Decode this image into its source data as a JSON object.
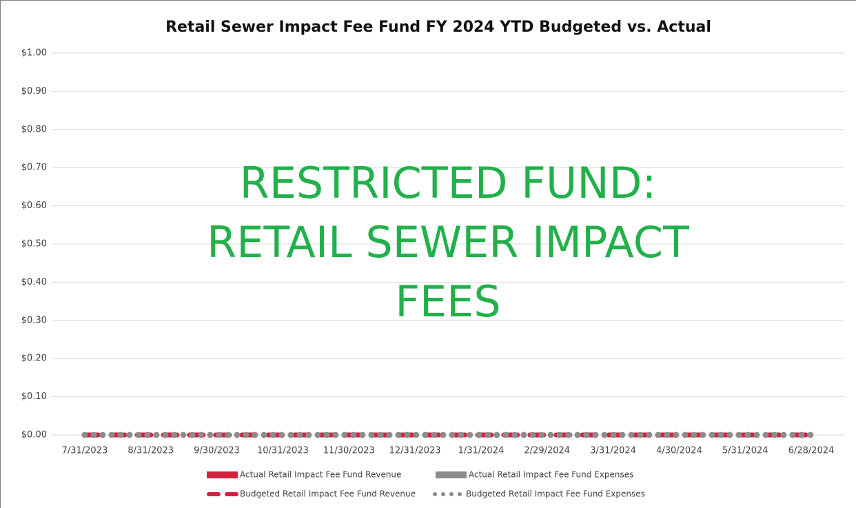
{
  "chart_data": {
    "type": "bar_line",
    "title": "Retail Sewer Impact Fee Fund FY 2024 YTD Budgeted vs. Actual",
    "annotation": [
      "RESTRICTED FUND:",
      "RETAIL SEWER IMPACT",
      "FEES"
    ],
    "annotation_color": "#22b04b",
    "categories": [
      "7/31/2023",
      "8/31/2023",
      "9/30/2023",
      "10/31/2023",
      "11/30/2023",
      "12/31/2023",
      "1/31/2024",
      "2/29/2024",
      "3/31/2024",
      "4/30/2024",
      "5/31/2024",
      "6/28/2024"
    ],
    "series": [
      {
        "name": "Actual Retail Impact Fee Fund Revenue",
        "kind": "bar",
        "color": "#d4213d",
        "values": [
          0,
          0,
          0,
          0,
          0,
          0,
          0,
          0,
          0,
          0,
          0,
          0
        ]
      },
      {
        "name": "Actual Retail Impact Fee Fund Expenses",
        "kind": "bar",
        "color": "#8c8c8c",
        "values": [
          0,
          0,
          0,
          0,
          0,
          0,
          0,
          0,
          0,
          0,
          0,
          0
        ]
      },
      {
        "name": "Budgeted Retail Impact Fee Fund Revenue",
        "kind": "line",
        "style": "dashed",
        "color": "#d4213d",
        "values": [
          0,
          0,
          0,
          0,
          0,
          0,
          0,
          0,
          0,
          0,
          0,
          0
        ]
      },
      {
        "name": "Budgeted Retail Impact Fee Fund Expenses",
        "kind": "line",
        "style": "dotted",
        "color": "#8c8c8c",
        "values": [
          0,
          0,
          0,
          0,
          0,
          0,
          0,
          0,
          0,
          0,
          0,
          0
        ]
      }
    ],
    "ylim": [
      0,
      1
    ],
    "yticks": [
      {
        "value": 0,
        "label": "$0.00"
      },
      {
        "value": 0.1,
        "label": "$0.10"
      },
      {
        "value": 0.2,
        "label": "$0.20"
      },
      {
        "value": 0.3,
        "label": "$0.30"
      },
      {
        "value": 0.4,
        "label": "$0.40"
      },
      {
        "value": 0.5,
        "label": "$0.50"
      },
      {
        "value": 0.6,
        "label": "$0.60"
      },
      {
        "value": 0.7,
        "label": "$0.70"
      },
      {
        "value": 0.8,
        "label": "$0.80"
      },
      {
        "value": 0.9,
        "label": "$0.90"
      },
      {
        "value": 1,
        "label": "$1.00"
      }
    ],
    "grid": true,
    "legend": "bottom"
  }
}
